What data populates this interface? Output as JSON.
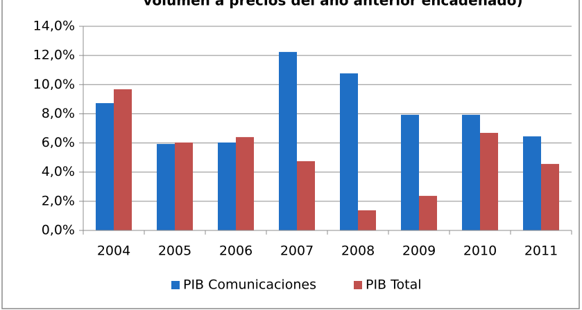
{
  "chart_data": {
    "type": "bar",
    "title": "volumen a precios del año anterior encadenado)",
    "categories": [
      "2004",
      "2005",
      "2006",
      "2007",
      "2008",
      "2009",
      "2010",
      "2011"
    ],
    "series": [
      {
        "name": "PIB Comunicaciones",
        "color": "#1f6fc5",
        "values": [
          8.73,
          5.93,
          6.03,
          12.24,
          10.77,
          7.93,
          7.93,
          6.45
        ]
      },
      {
        "name": "PIB Total",
        "color": "#c0504d",
        "values": [
          9.68,
          6.03,
          6.4,
          4.75,
          1.38,
          2.37,
          6.69,
          4.56
        ]
      }
    ],
    "ylim": [
      0,
      14
    ],
    "yticks": [
      {
        "value": 0,
        "label": "0,0%"
      },
      {
        "value": 2,
        "label": "2,0%"
      },
      {
        "value": 4,
        "label": "4,0%"
      },
      {
        "value": 6,
        "label": "6,0%"
      },
      {
        "value": 8,
        "label": "8,0%"
      },
      {
        "value": 10,
        "label": "10,0%"
      },
      {
        "value": 12,
        "label": "12,0%"
      },
      {
        "value": 14,
        "label": "14,0%"
      }
    ],
    "grid": true,
    "legend": "bottom"
  }
}
